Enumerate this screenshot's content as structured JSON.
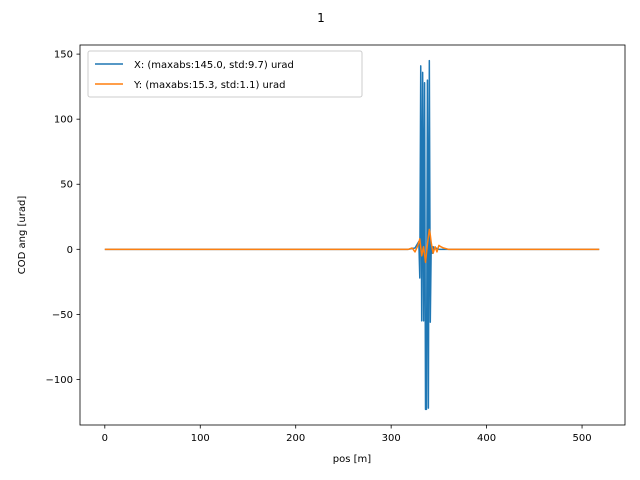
{
  "chart_data": {
    "type": "line",
    "title": "1",
    "xlabel": "pos [m]",
    "ylabel": "COD ang [urad]",
    "xlim": [
      -26,
      545
    ],
    "ylim": [
      -135,
      157
    ],
    "xticks": [
      0,
      100,
      200,
      300,
      400,
      500
    ],
    "yticks": [
      -100,
      -50,
      0,
      50,
      100,
      150
    ],
    "xtick_labels": [
      "0",
      "100",
      "200",
      "300",
      "400",
      "500"
    ],
    "ytick_labels": [
      "−100",
      "−50",
      "0",
      "50",
      "100",
      "150"
    ],
    "grid": false,
    "legend_position": "top-left",
    "series": [
      {
        "name": "X: (maxabs:145.0, std:9.7) urad",
        "color": "#1f77b4",
        "x": [
          0,
          300,
          318,
          325,
          329,
          330,
          331,
          332,
          333,
          334,
          335,
          336,
          337,
          338,
          339,
          340,
          341,
          342,
          343,
          344,
          345,
          347,
          350,
          360,
          518
        ],
        "y": [
          0,
          0,
          0,
          1,
          6,
          -22,
          141,
          -55,
          136,
          -55,
          128,
          -123,
          -123,
          130,
          -122,
          145,
          -56,
          4,
          -3,
          2,
          0,
          1,
          0,
          0,
          0
        ]
      },
      {
        "name": "Y: (maxabs:15.3, std:1.1) urad",
        "color": "#ff7f0e",
        "x": [
          0,
          300,
          318,
          322,
          325,
          328,
          330,
          332,
          334,
          336,
          338,
          340,
          341,
          342,
          344,
          346,
          348,
          350,
          352,
          355,
          360,
          518
        ],
        "y": [
          0,
          0,
          0,
          1,
          -2,
          3,
          8,
          -5,
          2,
          -10,
          4,
          15.3,
          11,
          5,
          -3,
          2,
          -2,
          3,
          2,
          1,
          0,
          0
        ]
      }
    ]
  }
}
